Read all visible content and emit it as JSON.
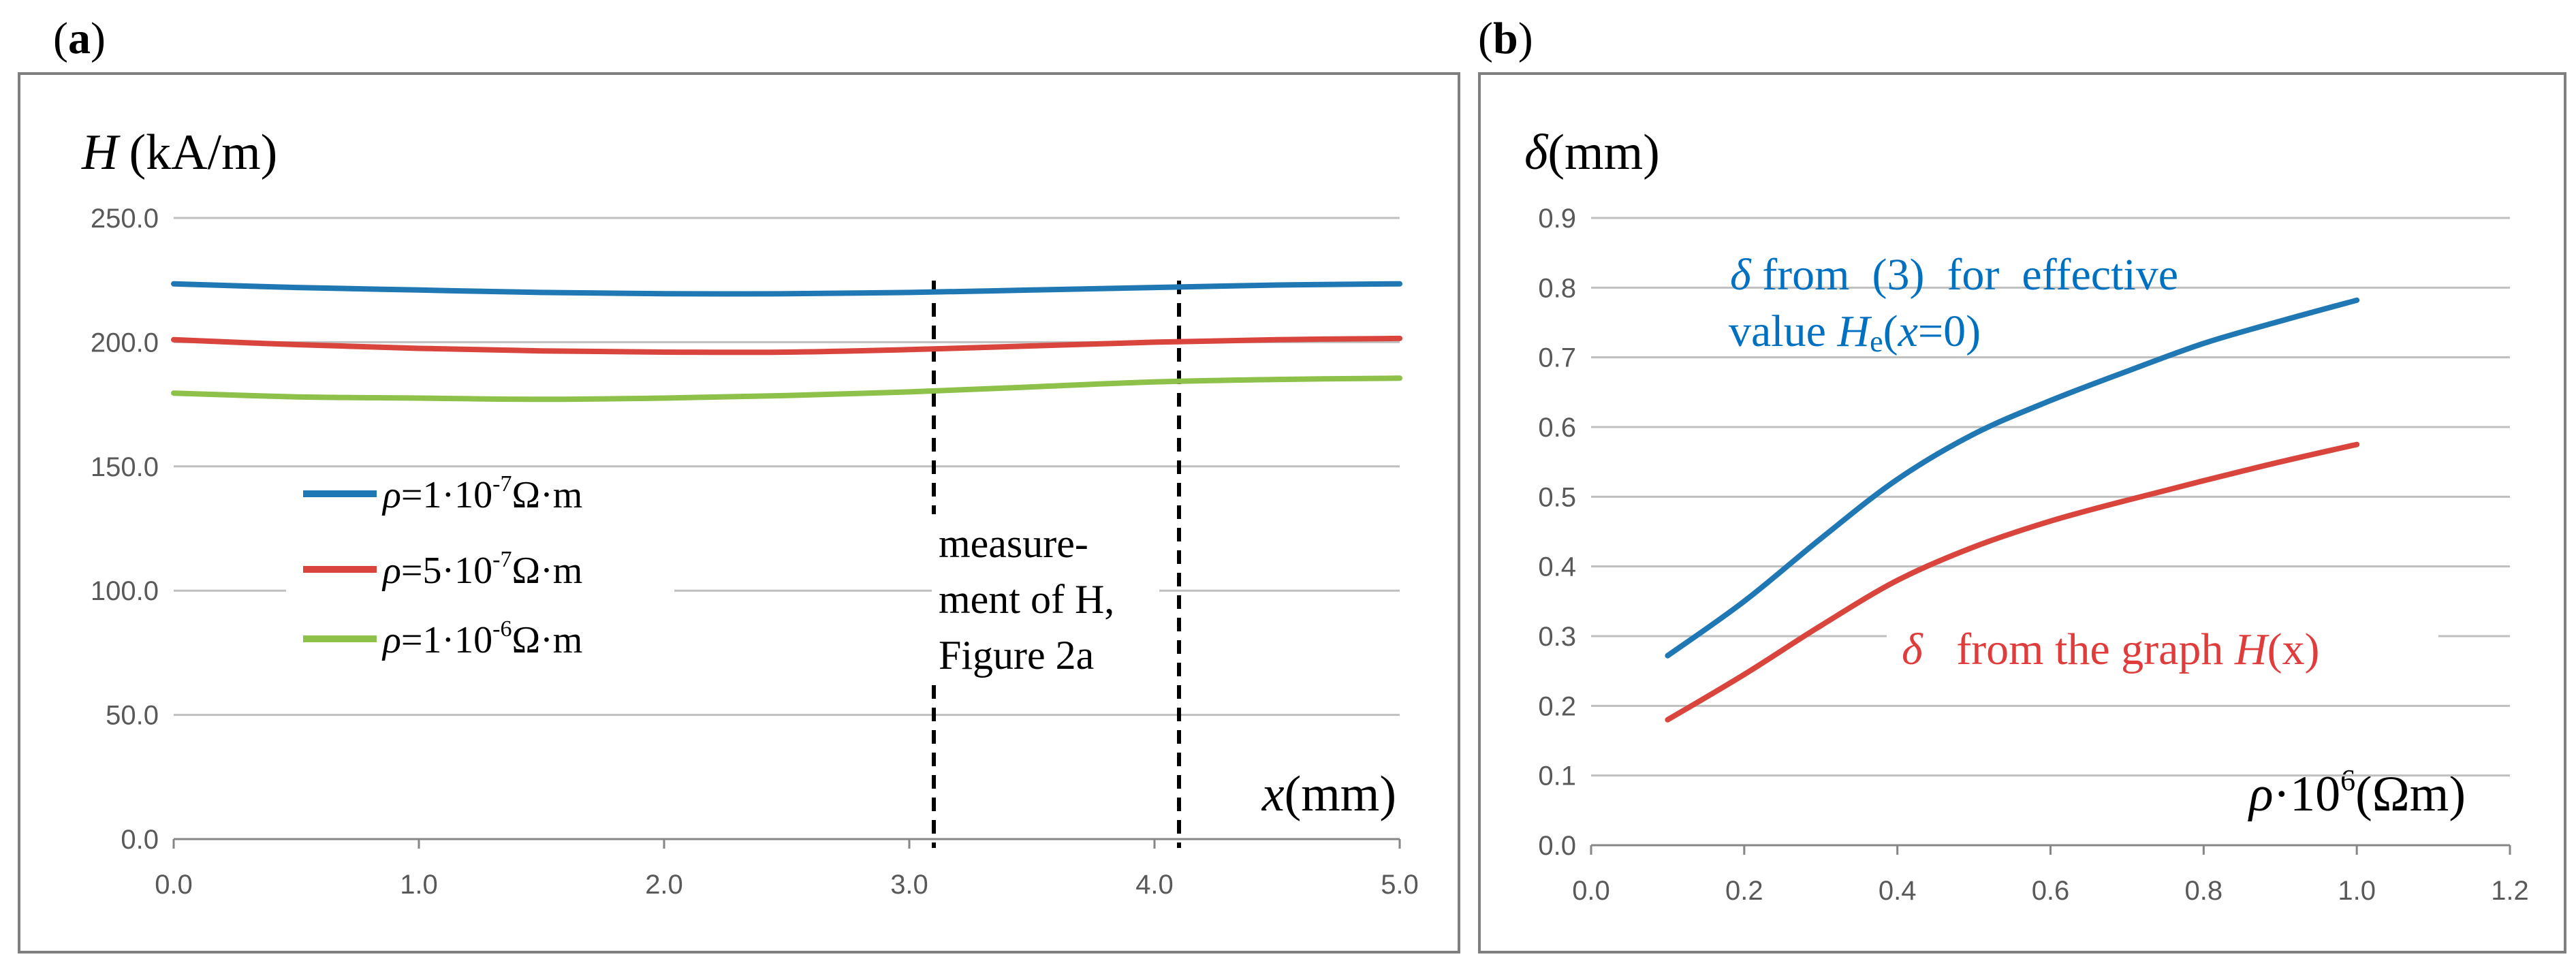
{
  "chart_data": [
    {
      "panel": "(a)",
      "panel_letter": "a",
      "type": "line",
      "ylabel_symbol": "H",
      "ylabel_unit": "(kA/m)",
      "xlabel_symbol": "x",
      "xlabel_unit": "(mm)",
      "xlim": [
        0,
        5
      ],
      "ylim": [
        0,
        250
      ],
      "x_ticks": [
        "0.0",
        "1.0",
        "2.0",
        "3.0",
        "4.0",
        "5.0"
      ],
      "y_ticks": [
        "0.0",
        "50.0",
        "100.0",
        "150.0",
        "200.0",
        "250.0"
      ],
      "series": [
        {
          "name": "ρ=1·10⁻⁷Ω·m",
          "legend_rho": "ρ",
          "legend_value": "=1·10",
          "legend_exp": "-7",
          "legend_unit": "Ω·m",
          "color": "#1f77b4",
          "x": [
            0,
            0.5,
            1,
            1.5,
            2,
            2.5,
            3,
            3.5,
            4,
            4.5,
            5
          ],
          "y": [
            223.5,
            222,
            221,
            220,
            219.5,
            219.5,
            220,
            221,
            222,
            223,
            223.5
          ]
        },
        {
          "name": "ρ=5·10⁻⁷Ω·m",
          "legend_rho": "ρ",
          "legend_value": "=5·10",
          "legend_exp": "-7",
          "legend_unit": "Ω·m",
          "color": "#d9453d",
          "x": [
            0,
            0.5,
            1,
            1.5,
            2,
            2.5,
            3,
            3.5,
            4,
            4.5,
            5
          ],
          "y": [
            201,
            199,
            197.5,
            196.5,
            196,
            196,
            197,
            198.5,
            200,
            201,
            201.5
          ]
        },
        {
          "name": "ρ=1·10⁻⁶Ω·m",
          "legend_rho": "ρ",
          "legend_value": "=1·10",
          "legend_exp": "-6",
          "legend_unit": "Ω·m",
          "color": "#8dc14a",
          "x": [
            0,
            0.5,
            1,
            1.5,
            2,
            2.5,
            3,
            3.5,
            4,
            4.5,
            5
          ],
          "y": [
            179.5,
            178,
            177.5,
            177,
            177.5,
            178.5,
            180,
            182,
            184,
            185,
            185.5
          ]
        }
      ],
      "vlines_x": [
        3.1,
        4.1
      ],
      "annotation_lines": [
        "measure-",
        "ment of H,",
        "Figure 2a"
      ]
    },
    {
      "panel": "(b)",
      "panel_letter": "b",
      "type": "line",
      "ylabel_symbol": "δ",
      "ylabel_unit": "(mm)",
      "xlabel_symbol": "ρ",
      "xlabel_text": "·10",
      "xlabel_exp": "6",
      "xlabel_unit": "(Ωm)",
      "xlim": [
        0,
        1.2
      ],
      "ylim": [
        0,
        0.9
      ],
      "x_ticks": [
        "0.0",
        "0.2",
        "0.4",
        "0.6",
        "0.8",
        "1.0",
        "1.2"
      ],
      "y_ticks": [
        "0.0",
        "0.1",
        "0.2",
        "0.3",
        "0.4",
        "0.5",
        "0.6",
        "0.7",
        "0.8",
        "0.9"
      ],
      "series": [
        {
          "name": "δ from (3) for effective value He(x=0)",
          "color": "#1f77b4",
          "x": [
            0.1,
            0.2,
            0.3,
            0.4,
            0.5,
            0.6,
            0.7,
            0.8,
            0.9,
            1.0
          ],
          "y": [
            0.272,
            0.35,
            0.44,
            0.525,
            0.59,
            0.638,
            0.68,
            0.72,
            0.752,
            0.782
          ]
        },
        {
          "name": "δ from the graph H(x)",
          "color": "#d9453d",
          "x": [
            0.1,
            0.2,
            0.3,
            0.4,
            0.5,
            0.6,
            0.7,
            0.8,
            0.9,
            1.0
          ],
          "y": [
            0.18,
            0.245,
            0.315,
            0.38,
            0.428,
            0.465,
            0.495,
            0.523,
            0.55,
            0.575
          ]
        }
      ],
      "annotation_blue": {
        "line1_symbol": "δ",
        "line1_text": " from  (3)  for  effective",
        "line2_text": "value ",
        "line2_sym": "H",
        "line2_sub": "e",
        "line2_paren_open": "(",
        "line2_x": "x",
        "line2_rest": "=0)"
      },
      "annotation_red": {
        "symbol": "δ",
        "text": "   from the graph ",
        "sym": "H",
        "paren": "(x)"
      }
    }
  ]
}
